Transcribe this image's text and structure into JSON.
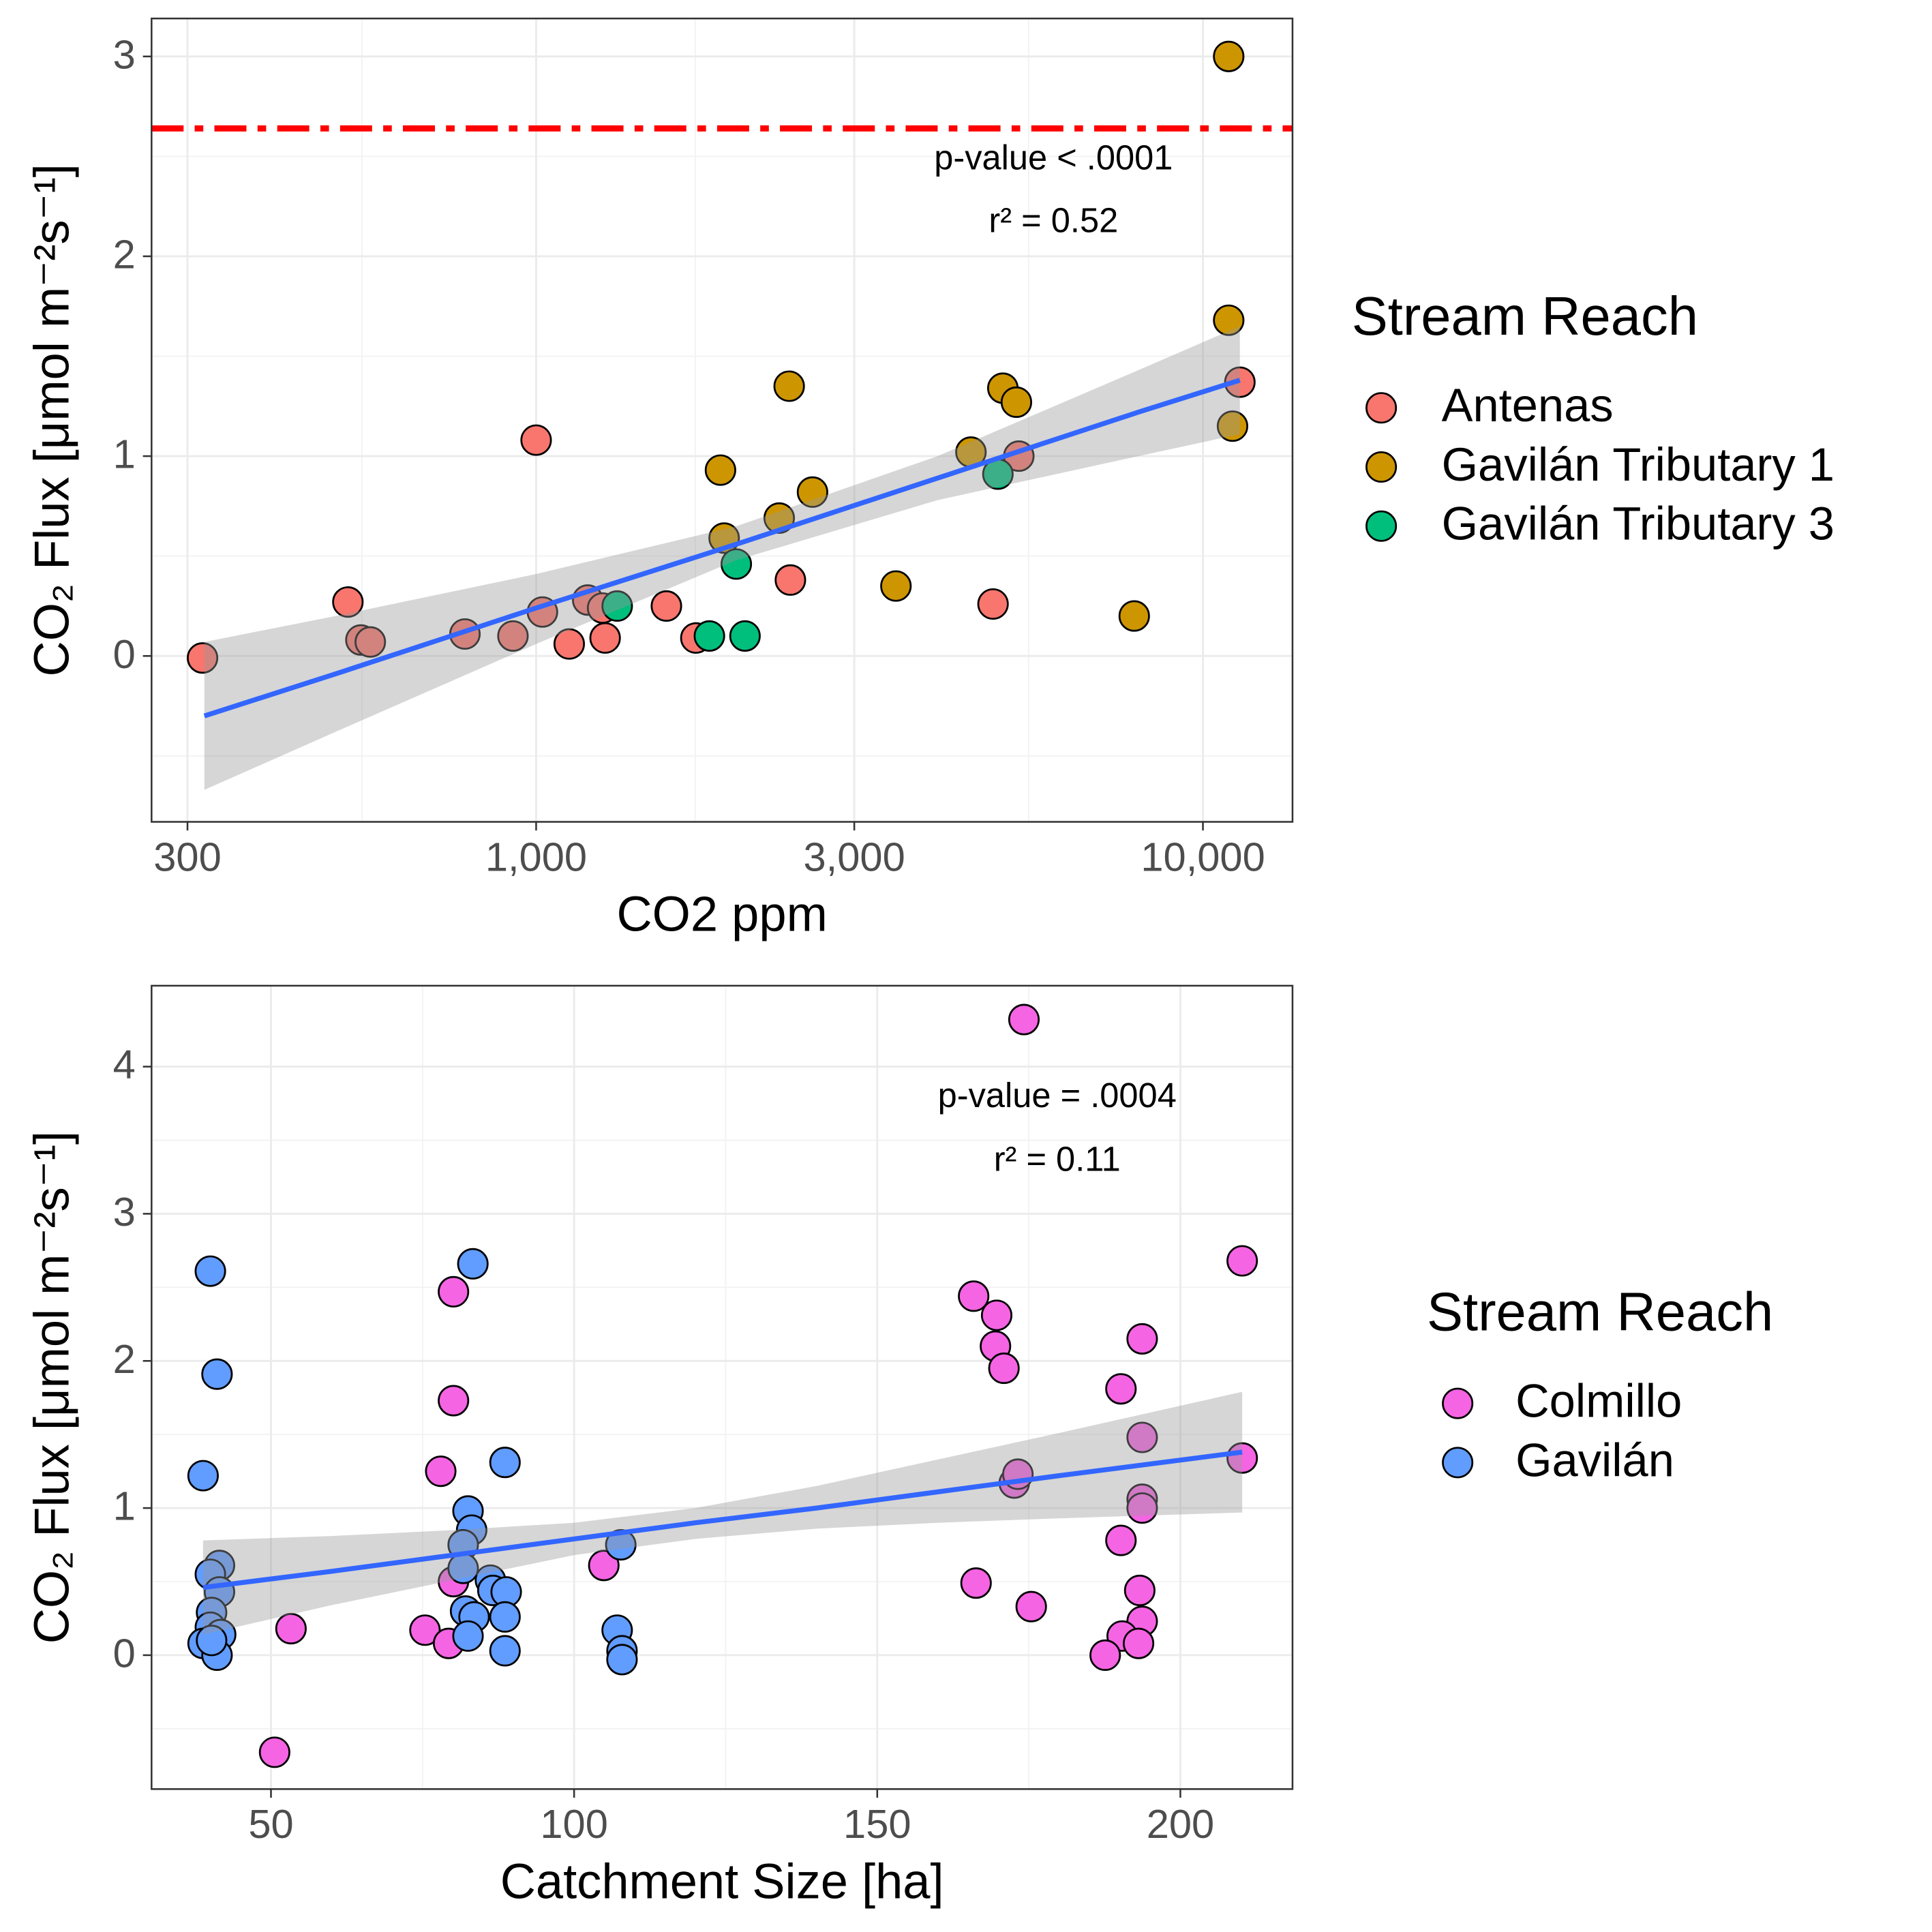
{
  "chart_data": [
    {
      "type": "scatter",
      "xlabel": "CO2 ppm",
      "ylabel": "CO₂ Flux [μmol m⁻²s⁻¹]",
      "log_x": true,
      "grid": true,
      "xlim": [
        265,
        13625
      ],
      "ylim": [
        -0.83,
        3.19
      ],
      "xticks": [
        300,
        {
          "value": 1000,
          "label": "1,000"
        },
        {
          "value": 3000,
          "label": "3,000"
        },
        {
          "value": 10000,
          "label": "10,000"
        }
      ],
      "xminor": [
        548,
        1732,
        5477
      ],
      "yticks": [
        0,
        1,
        2,
        3
      ],
      "yminor": [
        -0.5,
        0.5,
        1.5,
        2.5
      ],
      "legend_title": "Stream Reach",
      "series": [
        {
          "name": "Antenas",
          "color": "#F8766D",
          "x": [
            316,
            522,
            546,
            564,
            782,
            923,
            1000,
            1022,
            1121,
            1195,
            1258,
            1269,
            1568,
            1736,
            2406,
            4844,
            5295,
            11360
          ],
          "values": [
            -0.01,
            0.27,
            0.08,
            0.07,
            0.11,
            0.1,
            1.08,
            0.22,
            0.06,
            0.28,
            0.24,
            0.09,
            0.25,
            0.09,
            0.38,
            0.26,
            1.0,
            1.37
          ]
        },
        {
          "name": "Gavilán Tributary 1",
          "color": "#CD9600",
          "x": [
            10930,
            10930,
            11075,
            2396,
            1890,
            1914,
            2315,
            2597,
            3464,
            5011,
            5251,
            4488,
            7888
          ],
          "values": [
            3.0,
            1.68,
            1.15,
            1.35,
            0.93,
            0.59,
            0.69,
            0.82,
            0.35,
            1.34,
            1.27,
            1.02,
            0.2
          ]
        },
        {
          "name": "Gavilán Tributary 3",
          "color": "#00BF7D",
          "x": [
            1323,
            1819,
            2057,
            1996,
            4926
          ],
          "values": [
            0.25,
            0.1,
            0.1,
            0.46,
            0.91
          ]
        }
      ],
      "fit": {
        "color": "#3366FF",
        "band_color": "#999999",
        "x": [
          318,
          500,
          1000,
          2000,
          4000,
          8000,
          11360
        ],
        "values": [
          -0.3,
          -0.09,
          0.24,
          0.56,
          0.89,
          1.22,
          1.38
        ],
        "lower": [
          -0.67,
          -0.38,
          0.06,
          0.48,
          0.78,
          1.0,
          1.11
        ],
        "upper": [
          0.07,
          0.2,
          0.41,
          0.65,
          1.0,
          1.43,
          1.65
        ]
      },
      "hline": {
        "value": 2.64,
        "color": "#FF0000"
      },
      "annotations": [
        "p-value < .0001",
        "r² = 0.52"
      ]
    },
    {
      "type": "scatter",
      "xlabel": "Catchment Size [ha]",
      "ylabel": "CO₂ Flux [μmol m⁻²s⁻¹]",
      "log_x": false,
      "grid": true,
      "xlim": [
        30.3,
        218.5
      ],
      "ylim": [
        -0.91,
        4.55
      ],
      "xticks": [
        50,
        100,
        150,
        200
      ],
      "xminor": [
        75,
        125,
        175
      ],
      "yticks": [
        0,
        1,
        2,
        3,
        4
      ],
      "yminor": [
        -0.5,
        0.5,
        1.5,
        2.5,
        3.5
      ],
      "legend_title": "Stream Reach",
      "series": [
        {
          "name": "Colmillo",
          "color": "#F564E3",
          "x": [
            174.2,
            210.2,
            165.9,
            169.7,
            169.5,
            170.9,
            193.7,
            190.2,
            193.7,
            193.7,
            193.7,
            190.2,
            210.2,
            172.6,
            173.2,
            166.3,
            175.4,
            193.3,
            193.7,
            190.4,
            193.1,
            187.6,
            80.1,
            80.1,
            78.0,
            80.1,
            75.4,
            79.3,
            53.3,
            50.6,
            104.9
          ],
          "values": [
            4.32,
            2.68,
            2.44,
            2.31,
            2.1,
            1.95,
            2.15,
            1.81,
            1.48,
            1.06,
            1.0,
            0.78,
            1.34,
            1.17,
            1.23,
            0.49,
            0.33,
            0.44,
            0.23,
            0.13,
            0.08,
            0.0,
            2.47,
            1.73,
            1.25,
            0.5,
            0.17,
            0.08,
            0.18,
            -0.66,
            0.61
          ]
        },
        {
          "name": "Gavilán",
          "color": "#619CFF",
          "x": [
            40.0,
            41.1,
            38.8,
            83.3,
            88.6,
            82.5,
            83.1,
            81.7,
            81.7,
            86.2,
            86.6,
            88.8,
            82.1,
            83.5,
            88.6,
            82.5,
            88.6,
            41.5,
            40.0,
            41.5,
            40.2,
            40.0,
            41.7,
            38.8,
            41.1,
            40.2,
            107.7,
            107.1,
            107.9,
            107.9
          ],
          "values": [
            2.61,
            1.91,
            1.22,
            2.66,
            1.31,
            0.98,
            0.85,
            0.75,
            0.59,
            0.51,
            0.44,
            0.43,
            0.3,
            0.26,
            0.26,
            0.13,
            0.03,
            0.61,
            0.55,
            0.43,
            0.29,
            0.19,
            0.14,
            0.08,
            0.0,
            0.1,
            0.75,
            0.17,
            0.03,
            -0.03
          ]
        }
      ],
      "fit": {
        "color": "#3366FF",
        "band_color": "#999999",
        "x": [
          38.8,
          60,
          80,
          100,
          120,
          140,
          160,
          180,
          210.2
        ],
        "values": [
          0.46,
          0.57,
          0.68,
          0.79,
          0.9,
          1.0,
          1.11,
          1.22,
          1.38
        ],
        "lower": [
          0.14,
          0.34,
          0.51,
          0.68,
          0.79,
          0.86,
          0.9,
          0.93,
          0.97
        ],
        "upper": [
          0.78,
          0.81,
          0.85,
          0.9,
          1.0,
          1.15,
          1.33,
          1.51,
          1.79
        ]
      },
      "annotations": [
        "p-value = .0004",
        "r² = 0.11"
      ]
    }
  ]
}
